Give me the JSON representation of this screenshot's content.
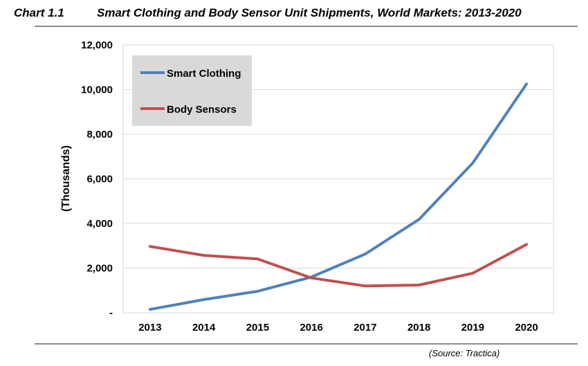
{
  "header": {
    "chart_label": "Chart 1.1",
    "title": "Smart Clothing and Body Sensor Unit Shipments, World Markets: 2013-2020"
  },
  "footer": {
    "source": "(Source: Tractica)"
  },
  "chart_data": {
    "type": "line",
    "title": "Smart Clothing and Body Sensor Unit Shipments, World Markets: 2013-2020",
    "xlabel": "",
    "ylabel": "(Thousands)",
    "categories": [
      "2013",
      "2014",
      "2015",
      "2016",
      "2017",
      "2018",
      "2019",
      "2020"
    ],
    "ylim": [
      0,
      12000
    ],
    "yticks": [
      0,
      2000,
      4000,
      6000,
      8000,
      10000,
      12000
    ],
    "ytick_labels": [
      "-",
      "2,000",
      "4,000",
      "6,000",
      "8,000",
      "10,000",
      "12,000"
    ],
    "grid": true,
    "legend_position": "top-left",
    "series": [
      {
        "name": "Smart Clothing",
        "color": "#4f81bd",
        "values": [
          150,
          590,
          960,
          1600,
          2630,
          4180,
          6710,
          10250
        ]
      },
      {
        "name": "Body Sensors",
        "color": "#c0504d",
        "values": [
          2970,
          2570,
          2410,
          1560,
          1200,
          1240,
          1770,
          3060
        ]
      }
    ]
  }
}
